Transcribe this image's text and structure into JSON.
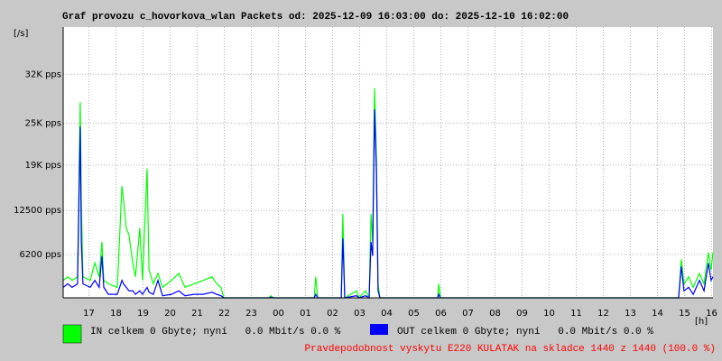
{
  "chart_data": {
    "type": "line",
    "title": "Graf provozu c_hovorkova_wlan Packets od: 2025-12-09 16:03:00 do: 2025-12-10 16:02:00",
    "y_unit": "[/s]",
    "x_unit": "[h]",
    "annotation": "Pravdepodobnost vyskytu E220 KULATAK na skladce 1440 z 1440 (100.0 %)",
    "xlim": [
      16.05,
      40.05
    ],
    "xticks": [
      {
        "value": 17,
        "label": "17"
      },
      {
        "value": 18,
        "label": "18"
      },
      {
        "value": 19,
        "label": "19"
      },
      {
        "value": 20,
        "label": "20"
      },
      {
        "value": 21,
        "label": "21"
      },
      {
        "value": 22,
        "label": "22"
      },
      {
        "value": 23,
        "label": "23"
      },
      {
        "value": 24,
        "label": "00"
      },
      {
        "value": 25,
        "label": "01"
      },
      {
        "value": 26,
        "label": "02"
      },
      {
        "value": 27,
        "label": "03"
      },
      {
        "value": 28,
        "label": "04"
      },
      {
        "value": 29,
        "label": "05"
      },
      {
        "value": 30,
        "label": "06"
      },
      {
        "value": 31,
        "label": "07"
      },
      {
        "value": 32,
        "label": "08"
      },
      {
        "value": 33,
        "label": "09"
      },
      {
        "value": 34,
        "label": "10"
      },
      {
        "value": 35,
        "label": "11"
      },
      {
        "value": 36,
        "label": "12"
      },
      {
        "value": 37,
        "label": "13"
      },
      {
        "value": 38,
        "label": "14"
      },
      {
        "value": 39,
        "label": "15"
      },
      {
        "value": 40,
        "label": "16"
      }
    ],
    "ylim": [
      0,
      38750
    ],
    "yticks": [
      {
        "value": 6200,
        "label": "6200 pps"
      },
      {
        "value": 12500,
        "label": "12500 pps"
      },
      {
        "value": 19000,
        "label": "19K pps"
      },
      {
        "value": 25000,
        "label": "25K pps"
      },
      {
        "value": 32000,
        "label": "32K pps"
      }
    ],
    "grid": true,
    "x": [
      16.05,
      16.22,
      16.38,
      16.58,
      16.68,
      16.72,
      16.78,
      17.05,
      17.22,
      17.38,
      17.48,
      17.55,
      17.72,
      18.05,
      18.22,
      18.28,
      18.38,
      18.48,
      18.62,
      18.72,
      18.88,
      18.98,
      19.15,
      19.22,
      19.38,
      19.55,
      19.72,
      20.05,
      20.32,
      20.55,
      20.88,
      21.22,
      21.55,
      21.72,
      21.88,
      21.98,
      23.65,
      23.72,
      23.82,
      25.32,
      25.38,
      25.45,
      26.32,
      26.38,
      26.45,
      26.88,
      26.98,
      27.22,
      27.35,
      27.42,
      27.48,
      27.55,
      27.62,
      27.68,
      27.75,
      29.88,
      29.92,
      29.98,
      38.78,
      38.88,
      38.98,
      39.15,
      39.32,
      39.55,
      39.72,
      39.88,
      39.98,
      40.05
    ],
    "series": [
      {
        "name": "IN celkem 0 Gbyte; nyní   0.0 Mbit/s 0.0 %",
        "color": "#00ff00",
        "values": [
          2500,
          3000,
          2500,
          3000,
          28000,
          14000,
          3000,
          2500,
          5000,
          3000,
          8000,
          2500,
          2000,
          1500,
          16000,
          14000,
          10000,
          9000,
          5000,
          3000,
          10000,
          2500,
          18500,
          4000,
          2000,
          3500,
          1500,
          2500,
          3500,
          1500,
          2000,
          2500,
          3000,
          2000,
          1500,
          0,
          0,
          300,
          0,
          0,
          3000,
          0,
          0,
          12000,
          0,
          1000,
          0,
          1000,
          0,
          12000,
          8000,
          30000,
          20000,
          2000,
          0,
          0,
          2000,
          0,
          0,
          5500,
          2000,
          3000,
          1500,
          3500,
          2000,
          6500,
          4000,
          6500
        ]
      },
      {
        "name": "OUT celkem 0 Gbyte; nyní   0.0 Mbit/s 0.0 %",
        "color": "#0000ff",
        "values": [
          1500,
          2000,
          1500,
          2000,
          24500,
          8000,
          2000,
          1500,
          2500,
          1500,
          6000,
          1500,
          500,
          500,
          2500,
          2000,
          1500,
          1000,
          1000,
          500,
          1000,
          500,
          1500,
          800,
          500,
          2500,
          300,
          500,
          1000,
          300,
          500,
          500,
          800,
          500,
          300,
          0,
          0,
          100,
          0,
          0,
          500,
          0,
          0,
          8500,
          0,
          300,
          0,
          300,
          0,
          8000,
          6000,
          27000,
          18000,
          1000,
          0,
          0,
          500,
          0,
          0,
          4500,
          1000,
          1500,
          500,
          2500,
          1000,
          5000,
          2500,
          3000
        ]
      }
    ]
  }
}
